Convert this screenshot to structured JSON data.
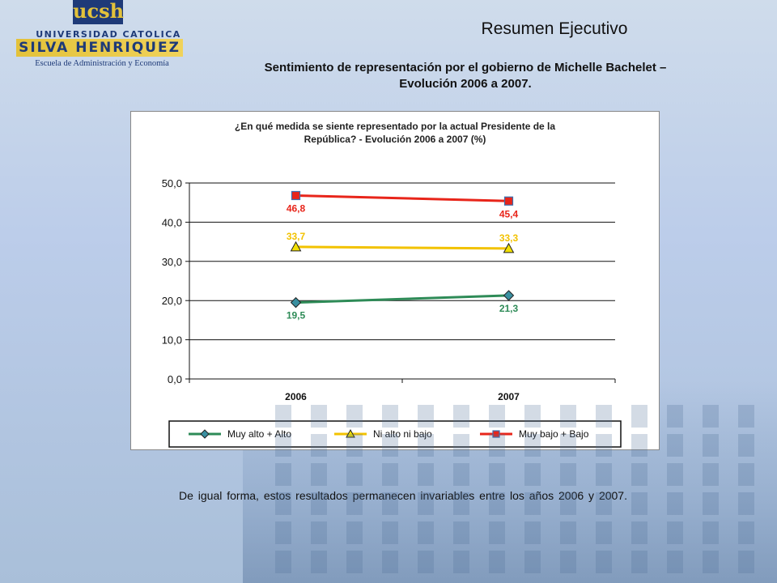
{
  "header": {
    "title": "Resumen Ejecutivo",
    "subtitle_line1": "Sentimiento de representación por el gobierno de Michelle Bachelet –",
    "subtitle_line2": "Evolución 2006 a 2007."
  },
  "logo": {
    "acronym": "ucsh",
    "university": "UNIVERSIDAD CATOLICA",
    "name": "SILVA HENRIQUEZ",
    "school": "Escuela de Administración y Economía"
  },
  "footer": {
    "text": "De igual forma, estos resultados permanecen invariables entre los años 2006 y 2007."
  },
  "chart_data": {
    "type": "line",
    "title_line1": "¿En qué medida se siente representado por la actual Presidente de la",
    "title_line2": "República?  - Evolución 2006 a 2007 (%)",
    "categories": [
      "2006",
      "2007"
    ],
    "ylim": [
      0,
      50
    ],
    "yticks": [
      "0,0",
      "10,0",
      "20,0",
      "30,0",
      "40,0",
      "50,0"
    ],
    "grid": true,
    "legend_position": "bottom",
    "series": [
      {
        "name": "Muy alto + Alto",
        "values": [
          19.5,
          21.3
        ],
        "labels": [
          "19,5",
          "21,3"
        ],
        "color": "#2e8b57",
        "marker": "diamond",
        "marker_fill": "#3a8fa0",
        "label_position": "below"
      },
      {
        "name": "Ni alto ni bajo",
        "values": [
          33.7,
          33.3
        ],
        "labels": [
          "33,7",
          "33,3"
        ],
        "color": "#f2c200",
        "marker": "triangle",
        "marker_fill": "#f2e000",
        "label_position": "above"
      },
      {
        "name": "Muy bajo + Bajo",
        "values": [
          46.8,
          45.4
        ],
        "labels": [
          "46,8",
          "45,4"
        ],
        "color": "#e8251a",
        "marker": "square",
        "marker_fill": "#e8251a",
        "label_position": "below"
      }
    ]
  }
}
